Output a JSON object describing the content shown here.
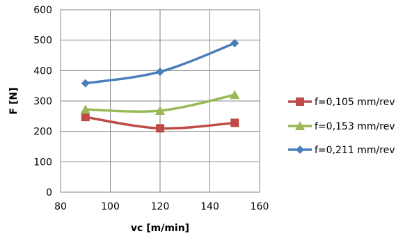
{
  "chart_data": {
    "type": "line",
    "title": "",
    "xlabel": "vc [m/min]",
    "ylabel": "F [N]",
    "xlim": [
      80,
      160
    ],
    "ylim": [
      0,
      600
    ],
    "xticks": [
      80,
      100,
      120,
      140,
      160
    ],
    "yticks": [
      0,
      100,
      200,
      300,
      400,
      500,
      600
    ],
    "grid": true,
    "legend_position": "right",
    "smooth": true,
    "series": [
      {
        "name": "f=0,105 mm/rev",
        "color": "#be4b48",
        "marker": "square",
        "x": [
          90,
          120,
          150
        ],
        "y": [
          247,
          210,
          228
        ]
      },
      {
        "name": "f=0,153 mm/rev",
        "color": "#98b954",
        "marker": "triangle",
        "x": [
          90,
          120,
          150
        ],
        "y": [
          272,
          268,
          320
        ]
      },
      {
        "name": "f=0,211 mm/rev",
        "color": "#4a7ebb",
        "marker": "diamond",
        "x": [
          90,
          120,
          150
        ],
        "y": [
          358,
          396,
          490
        ]
      }
    ]
  }
}
